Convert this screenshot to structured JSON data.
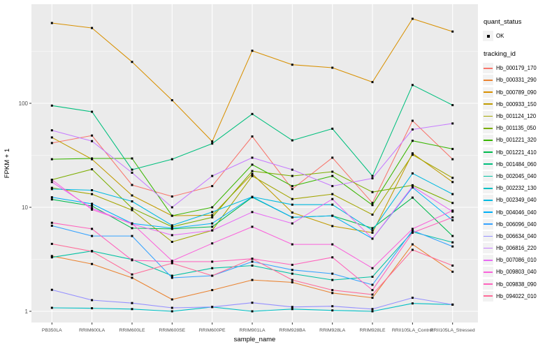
{
  "figure": {
    "x_axis_title": "sample_name",
    "y_axis_title": "FPKM + 1",
    "y_tick_labels": [
      "1",
      "10",
      "100"
    ],
    "colors": {
      "panel_bg": "#EBEBEB",
      "gridline": "#FFFFFF",
      "legend_key_bg": "#F2F2F2",
      "point": "#000000",
      "tick_text": "#4D4D4D",
      "axis_title_text": "#000000"
    }
  },
  "legend": {
    "quant_status_title": "quant_status",
    "quant_status_items": [
      {
        "label": "OK",
        "symbol": "filled-point",
        "color": "#000000"
      }
    ],
    "tracking_id_title": "tracking_id"
  },
  "chart_data": {
    "type": "line",
    "x_type": "categorical",
    "y_scale": "log10",
    "title": "",
    "xlabel": "sample_name",
    "ylabel": "FPKM + 1",
    "ylim": [
      0.93,
      720
    ],
    "y_major_ticks": [
      1,
      10,
      100
    ],
    "y_minor_gridlines": [
      3.162,
      31.62,
      316.2
    ],
    "grid": true,
    "legend_position": "right",
    "point_marker": "small black point on every vertex (quant_status = OK)",
    "categories": [
      "PB350LA",
      "RRIM600LA",
      "RRIM600LE",
      "RRIM600SE",
      "RRIM600PE",
      "RRIM901LA",
      "RRIM928BA",
      "RRIM928LA",
      "RRIM928LE",
      "RRII105LA_Control",
      "RRII105LA_Stressed"
    ],
    "series": [
      {
        "name": "Hb_000179_170",
        "color": "#F8766D",
        "values": [
          41.5,
          49,
          16.4,
          12.7,
          16,
          48,
          15,
          30,
          11,
          68,
          29
        ]
      },
      {
        "name": "Hb_000331_290",
        "color": "#EA8331",
        "values": [
          3.4,
          2.85,
          2.1,
          1.3,
          1.6,
          2.0,
          1.9,
          1.5,
          1.35,
          4.4,
          2.4
        ]
      },
      {
        "name": "Hb_000789_090",
        "color": "#D89000",
        "values": [
          591,
          530,
          250,
          107,
          43,
          320,
          235,
          220,
          160,
          650,
          490
        ]
      },
      {
        "name": "Hb_000933_150",
        "color": "#C09B00",
        "values": [
          47,
          29,
          13,
          8.3,
          8.4,
          21,
          8.9,
          6.6,
          5.7,
          33,
          17.5
        ]
      },
      {
        "name": "Hb_001124_120",
        "color": "#A3A500",
        "values": [
          15.4,
          13.4,
          9.4,
          4.65,
          6.0,
          20,
          12,
          13.4,
          8.5,
          32,
          19.2
        ]
      },
      {
        "name": "Hb_001135_050",
        "color": "#7CAE00",
        "values": [
          18.4,
          23.2,
          9.8,
          6.5,
          8.0,
          22.3,
          20,
          22,
          14,
          16.3,
          11
        ]
      },
      {
        "name": "Hb_001221_320",
        "color": "#39B600",
        "values": [
          29,
          29.5,
          29.5,
          8.3,
          10,
          25.7,
          16,
          20,
          10.5,
          43.6,
          36.4
        ]
      },
      {
        "name": "Hb_001221_410",
        "color": "#00BB4E",
        "values": [
          11.9,
          10.3,
          6.3,
          6.2,
          6.5,
          12.5,
          8.0,
          8.3,
          6.3,
          12.4,
          5.3
        ]
      },
      {
        "name": "Hb_001484_060",
        "color": "#00BF7D",
        "values": [
          95,
          83,
          23,
          29,
          41,
          79,
          44,
          57,
          20,
          150,
          96
        ]
      },
      {
        "name": "Hb_002045_040",
        "color": "#00C1A3",
        "values": [
          3.3,
          3.8,
          3.15,
          2.2,
          2.6,
          2.75,
          2.3,
          2.0,
          2.15,
          5.8,
          4.6
        ]
      },
      {
        "name": "Hb_002232_130",
        "color": "#00BFC4",
        "values": [
          1.08,
          1.07,
          1.05,
          1.0,
          1.1,
          1.0,
          1.05,
          1.02,
          1.0,
          1.19,
          1.16
        ]
      },
      {
        "name": "Hb_002349_040",
        "color": "#00BAE0",
        "values": [
          15.0,
          14.6,
          11.4,
          6.7,
          9.0,
          12.6,
          10.6,
          10.6,
          6.0,
          21.2,
          13.4
        ]
      },
      {
        "name": "Hb_004046_040",
        "color": "#00B0F6",
        "values": [
          12.5,
          10.8,
          7.0,
          6.3,
          7.0,
          12.6,
          8.0,
          8.3,
          5.0,
          15.5,
          7.5
        ]
      },
      {
        "name": "Hb_006096_040",
        "color": "#35A2FF",
        "values": [
          6.65,
          5.3,
          5.3,
          2.1,
          2.2,
          3.0,
          2.5,
          2.3,
          1.8,
          6.0,
          4.2
        ]
      },
      {
        "name": "Hb_006634_040",
        "color": "#9590FF",
        "values": [
          1.61,
          1.28,
          1.2,
          1.08,
          1.1,
          1.21,
          1.1,
          1.12,
          1.05,
          1.35,
          1.16
        ]
      },
      {
        "name": "Hb_006816_220",
        "color": "#C77CFF",
        "values": [
          55,
          43.3,
          21.5,
          10.0,
          20,
          30,
          23,
          16,
          19,
          56,
          64
        ]
      },
      {
        "name": "Hb_007086_010",
        "color": "#E76BF3",
        "values": [
          17.5,
          9.8,
          6.9,
          5.4,
          6.0,
          9.0,
          7.0,
          12,
          5.0,
          15.9,
          9.1
        ]
      },
      {
        "name": "Hb_009803_040",
        "color": "#FA62DB",
        "values": [
          18.4,
          9.5,
          7.0,
          3.05,
          4.5,
          6.5,
          4.4,
          4.4,
          2.6,
          6.2,
          9.3
        ]
      },
      {
        "name": "Hb_009838_090",
        "color": "#FF62BC",
        "values": [
          7.1,
          6.2,
          3.1,
          3.0,
          3.0,
          3.2,
          2.8,
          3.3,
          1.6,
          5.7,
          8.0
        ]
      },
      {
        "name": "Hb_094022_010",
        "color": "#FF6A98",
        "values": [
          4.45,
          3.77,
          2.26,
          2.9,
          2.2,
          3.2,
          2.0,
          1.6,
          1.45,
          3.9,
          2.75
        ]
      }
    ]
  }
}
